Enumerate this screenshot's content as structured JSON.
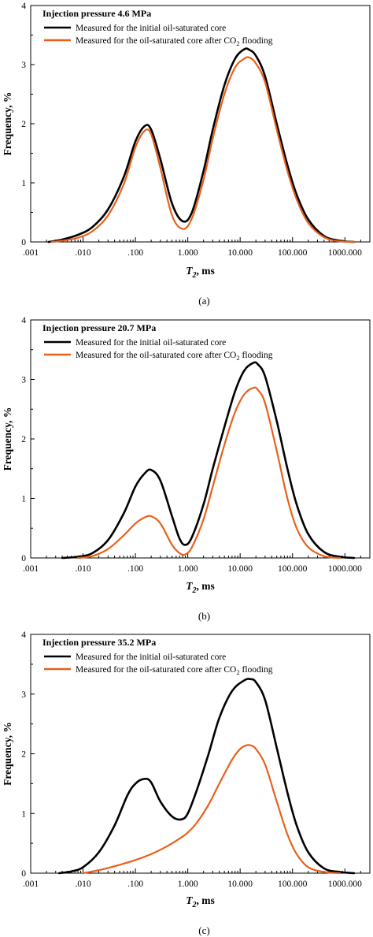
{
  "figure": {
    "x_label": "T",
    "x_label_sub": "2",
    "x_label_unit": ", ms",
    "y_label": "Frequency, %"
  },
  "chart_data": [
    {
      "type": "line",
      "caption": "(a)",
      "legend_title": "Injection pressure  4.6 MPa",
      "x_scale": "log",
      "xlim": [
        0.001,
        3000
      ],
      "ylim": [
        0,
        4
      ],
      "x_tick_values": [
        0.001,
        0.01,
        0.1,
        1,
        10,
        100,
        1000
      ],
      "x_tick_labels": [
        ".001",
        ".010",
        ".100",
        "1.000",
        "10.000",
        "100.000",
        "1000.000"
      ],
      "y_tick_values": [
        0,
        1,
        2,
        3,
        4
      ],
      "y_tick_labels": [
        "0",
        "1",
        "2",
        "3",
        "4"
      ],
      "series": [
        {
          "label_main": "Measured for the initial oil-saturated core",
          "label_sub": "",
          "label_tail": "",
          "color": "#000000",
          "x": [
            0.0022,
            0.004,
            0.008,
            0.015,
            0.03,
            0.06,
            0.1,
            0.15,
            0.2,
            0.3,
            0.5,
            0.8,
            1.2,
            2,
            3,
            5,
            8,
            12,
            15,
            20,
            30,
            50,
            80,
            120,
            200,
            400,
            800,
            1500
          ],
          "y": [
            0.0,
            0.04,
            0.12,
            0.25,
            0.55,
            1.1,
            1.7,
            1.96,
            1.9,
            1.4,
            0.65,
            0.35,
            0.5,
            1.2,
            1.9,
            2.65,
            3.1,
            3.26,
            3.25,
            3.15,
            2.8,
            2.0,
            1.3,
            0.8,
            0.38,
            0.1,
            0.02,
            0.0
          ]
        },
        {
          "label_main": "Measured for the oil-saturated core after CO",
          "label_sub": "2",
          "label_tail": " flooding",
          "color": "#e8601c",
          "x": [
            0.0025,
            0.004,
            0.008,
            0.015,
            0.03,
            0.06,
            0.1,
            0.15,
            0.2,
            0.3,
            0.5,
            0.8,
            1.2,
            2,
            3,
            5,
            8,
            12,
            15,
            20,
            30,
            50,
            80,
            120,
            200,
            400,
            800,
            1500
          ],
          "y": [
            0.0,
            0.02,
            0.07,
            0.18,
            0.45,
            0.98,
            1.6,
            1.88,
            1.82,
            1.25,
            0.45,
            0.22,
            0.4,
            1.05,
            1.75,
            2.5,
            2.95,
            3.1,
            3.12,
            3.02,
            2.7,
            1.9,
            1.2,
            0.72,
            0.32,
            0.08,
            0.01,
            0.0
          ]
        }
      ]
    },
    {
      "type": "line",
      "caption": "(b)",
      "legend_title": "Injection pressure  20.7 MPa",
      "x_scale": "log",
      "xlim": [
        0.001,
        3000
      ],
      "ylim": [
        0,
        4
      ],
      "x_tick_values": [
        0.001,
        0.01,
        0.1,
        1,
        10,
        100,
        1000
      ],
      "x_tick_labels": [
        ".001",
        ".010",
        ".100",
        "1.000",
        "10.000",
        "100.000",
        "1000.000"
      ],
      "y_tick_values": [
        0,
        1,
        2,
        3,
        4
      ],
      "y_tick_labels": [
        "0",
        "1",
        "2",
        "3",
        "4"
      ],
      "series": [
        {
          "label_main": "Measured for the initial oil-saturated core",
          "label_sub": "",
          "label_tail": "",
          "color": "#000000",
          "x": [
            0.004,
            0.008,
            0.015,
            0.03,
            0.06,
            0.1,
            0.15,
            0.2,
            0.3,
            0.5,
            0.7,
            0.9,
            1.2,
            2,
            3,
            5,
            8,
            12,
            18,
            22,
            30,
            50,
            80,
            120,
            200,
            400,
            800,
            1500
          ],
          "y": [
            0.0,
            0.02,
            0.08,
            0.3,
            0.75,
            1.2,
            1.42,
            1.48,
            1.3,
            0.7,
            0.32,
            0.22,
            0.35,
            0.9,
            1.5,
            2.2,
            2.8,
            3.15,
            3.28,
            3.25,
            3.05,
            2.3,
            1.5,
            0.9,
            0.4,
            0.1,
            0.02,
            0.0
          ]
        },
        {
          "label_main": "Measured for the oil-saturated core after CO",
          "label_sub": "2",
          "label_tail": " flooding",
          "color": "#e8601c",
          "x": [
            0.008,
            0.015,
            0.03,
            0.06,
            0.1,
            0.15,
            0.2,
            0.3,
            0.5,
            0.7,
            0.9,
            1.2,
            2,
            3,
            5,
            8,
            12,
            18,
            22,
            30,
            50,
            80,
            120,
            200,
            400,
            800
          ],
          "y": [
            0.0,
            0.03,
            0.15,
            0.38,
            0.58,
            0.68,
            0.7,
            0.58,
            0.22,
            0.08,
            0.06,
            0.18,
            0.65,
            1.2,
            1.9,
            2.45,
            2.75,
            2.86,
            2.82,
            2.6,
            1.8,
            1.0,
            0.5,
            0.18,
            0.03,
            0.0
          ]
        }
      ]
    },
    {
      "type": "line",
      "caption": "(c)",
      "legend_title": "Injection pressure  35.2 MPa",
      "x_scale": "log",
      "xlim": [
        0.001,
        3000
      ],
      "ylim": [
        0,
        4
      ],
      "x_tick_values": [
        0.001,
        0.01,
        0.1,
        1,
        10,
        100,
        1000
      ],
      "x_tick_labels": [
        ".001",
        ".010",
        ".100",
        "1.000",
        "10.000",
        "100.000",
        "1000.000"
      ],
      "y_tick_values": [
        0,
        1,
        2,
        3,
        4
      ],
      "y_tick_labels": [
        "0",
        "1",
        "2",
        "3",
        "4"
      ],
      "series": [
        {
          "label_main": "Measured for the initial oil-saturated core",
          "label_sub": "",
          "label_tail": "",
          "color": "#000000",
          "x": [
            0.0035,
            0.006,
            0.01,
            0.02,
            0.04,
            0.07,
            0.1,
            0.15,
            0.2,
            0.3,
            0.5,
            0.75,
            1.0,
            1.5,
            2.5,
            4,
            7,
            12,
            16,
            20,
            30,
            50,
            80,
            120,
            200,
            400,
            800,
            1500
          ],
          "y": [
            0.0,
            0.03,
            0.1,
            0.35,
            0.8,
            1.3,
            1.5,
            1.58,
            1.52,
            1.2,
            0.95,
            0.9,
            1.0,
            1.4,
            2.0,
            2.6,
            3.05,
            3.23,
            3.25,
            3.2,
            2.9,
            2.1,
            1.35,
            0.8,
            0.35,
            0.08,
            0.02,
            0.0
          ]
        },
        {
          "label_main": "Measured for the oil-saturated core after CO",
          "label_sub": "2",
          "label_tail": " flooding",
          "color": "#e8601c",
          "x": [
            0.01,
            0.02,
            0.05,
            0.1,
            0.2,
            0.4,
            0.7,
            1.0,
            1.5,
            2.5,
            4,
            7,
            10,
            13,
            16,
            20,
            30,
            50,
            80,
            120,
            200,
            400,
            800
          ],
          "y": [
            0.0,
            0.05,
            0.14,
            0.22,
            0.32,
            0.45,
            0.58,
            0.68,
            0.85,
            1.15,
            1.5,
            1.9,
            2.08,
            2.14,
            2.14,
            2.08,
            1.82,
            1.2,
            0.65,
            0.32,
            0.1,
            0.02,
            0.0
          ]
        }
      ]
    }
  ]
}
